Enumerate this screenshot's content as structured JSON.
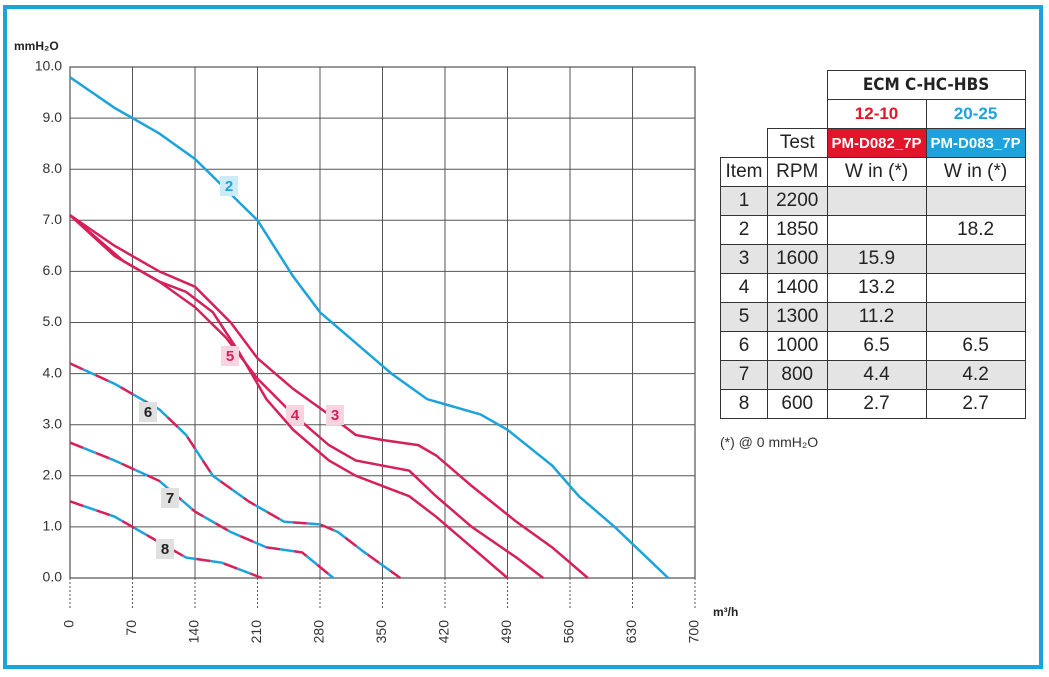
{
  "chart_data": {
    "type": "line",
    "y_label": "mmH₂O",
    "x_label": "m³/h",
    "xlim": [
      0,
      700
    ],
    "xticks": [
      0,
      70,
      140,
      210,
      280,
      350,
      420,
      490,
      560,
      630,
      700
    ],
    "ylim": [
      0,
      10
    ],
    "yticks": [
      {
        "value": 0,
        "label": "0.0"
      },
      {
        "value": 1,
        "label": "1.0"
      },
      {
        "value": 2,
        "label": "2.0"
      },
      {
        "value": 3,
        "label": "3.0"
      },
      {
        "value": 4,
        "label": "4.0"
      },
      {
        "value": 5,
        "label": "5.0"
      },
      {
        "value": 6,
        "label": "6.0"
      },
      {
        "value": 7,
        "label": "7.0"
      },
      {
        "value": 8,
        "label": "8.0"
      },
      {
        "value": 9,
        "label": "9.0"
      },
      {
        "value": 10,
        "label": "10.0"
      }
    ],
    "grid": true,
    "series": [
      {
        "name": "2",
        "color": "#1da3dc",
        "dashed": false,
        "x": [
          0,
          50,
          100,
          140,
          175,
          210,
          250,
          280,
          320,
          360,
          400,
          420,
          460,
          490,
          540,
          570,
          610,
          640,
          670
        ],
        "values": [
          9.8,
          9.2,
          8.7,
          8.2,
          7.6,
          7.0,
          5.9,
          5.2,
          4.6,
          4.0,
          3.5,
          3.4,
          3.2,
          2.9,
          2.2,
          1.6,
          1.0,
          0.5,
          0.0
        ]
      },
      {
        "name": "3",
        "color": "#d6205a",
        "dashed": false,
        "x": [
          0,
          50,
          100,
          140,
          180,
          210,
          250,
          290,
          320,
          350,
          390,
          410,
          450,
          500,
          540,
          580
        ],
        "values": [
          7.1,
          6.5,
          6.0,
          5.7,
          5.0,
          4.3,
          3.7,
          3.2,
          2.8,
          2.7,
          2.6,
          2.4,
          1.8,
          1.1,
          0.6,
          0.0
        ]
      },
      {
        "name": "4",
        "color": "#d6205a",
        "dashed": false,
        "x": [
          0,
          50,
          100,
          140,
          175,
          210,
          250,
          290,
          320,
          350,
          380,
          410,
          450,
          500,
          530
        ],
        "values": [
          7.1,
          6.3,
          5.8,
          5.3,
          4.7,
          3.9,
          3.2,
          2.6,
          2.3,
          2.2,
          2.1,
          1.6,
          1.0,
          0.4,
          0.0
        ]
      },
      {
        "name": "5",
        "color": "#d6205a",
        "dashed": false,
        "x": [
          0,
          60,
          100,
          130,
          160,
          190,
          220,
          250,
          290,
          320,
          350,
          380,
          410,
          450,
          490
        ],
        "values": [
          7.1,
          6.2,
          5.8,
          5.6,
          5.2,
          4.4,
          3.5,
          2.9,
          2.3,
          2.0,
          1.8,
          1.6,
          1.2,
          0.6,
          0.0
        ]
      },
      {
        "name": "6",
        "color": "#d6205a",
        "dashed": true,
        "x": [
          0,
          50,
          100,
          130,
          160,
          200,
          240,
          280,
          300,
          330,
          370
        ],
        "values": [
          4.2,
          3.8,
          3.3,
          2.8,
          2.0,
          1.5,
          1.1,
          1.05,
          0.9,
          0.5,
          0.0
        ]
      },
      {
        "name": "7",
        "color": "#d6205a",
        "dashed": true,
        "x": [
          0,
          50,
          100,
          140,
          180,
          220,
          260,
          295
        ],
        "values": [
          2.65,
          2.3,
          1.9,
          1.3,
          0.9,
          0.6,
          0.5,
          0.0
        ]
      },
      {
        "name": "8",
        "color": "#d6205a",
        "dashed": true,
        "x": [
          0,
          50,
          90,
          130,
          170,
          200,
          215
        ],
        "values": [
          1.5,
          1.2,
          0.8,
          0.4,
          0.3,
          0.1,
          0.0
        ]
      }
    ]
  },
  "table": {
    "group": "ECM C-HC-HBS",
    "sizes": [
      "12-10",
      "20-25"
    ],
    "test": "Test",
    "models": [
      "PM-D082_7P",
      "PM-D083_7P"
    ],
    "columns": [
      "Item",
      "RPM",
      "W in (*)",
      "W in (*)"
    ],
    "rows": [
      [
        1,
        2200,
        null,
        null
      ],
      [
        2,
        1850,
        null,
        18.2
      ],
      [
        3,
        1600,
        15.9,
        null
      ],
      [
        4,
        1400,
        13.2,
        null
      ],
      [
        5,
        1300,
        11.2,
        null
      ],
      [
        6,
        1000,
        6.5,
        6.5
      ],
      [
        7,
        800,
        4.4,
        4.2
      ],
      [
        8,
        600,
        2.7,
        2.7
      ]
    ],
    "footnote": "(*) @ 0 mmH₂O"
  }
}
